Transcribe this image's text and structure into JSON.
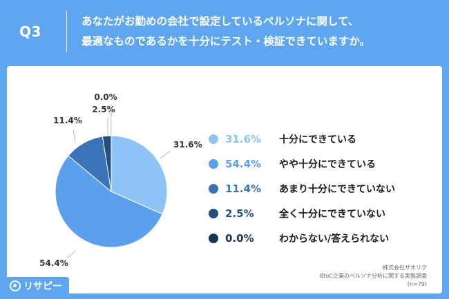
{
  "header": {
    "q_label": "Q3",
    "question_line1": "あなたがお勤めの会社で設定しているペルソナに関して、",
    "question_line2": "最適なものであるかを十分にテスト・検証できていますか。"
  },
  "chart_data": {
    "type": "pie",
    "title": "",
    "slices": [
      {
        "label": "十分にできている",
        "value": 31.6,
        "display": "31.6%",
        "color": "#8ec3f5"
      },
      {
        "label": "やや十分にできている",
        "value": 54.4,
        "display": "54.4%",
        "color": "#5aa0ec"
      },
      {
        "label": "あまり十分にできていない",
        "value": 11.4,
        "display": "11.4%",
        "color": "#3a73b8"
      },
      {
        "label": "全く十分にできていない",
        "value": 2.5,
        "display": "2.5%",
        "color": "#24507f"
      },
      {
        "label": "わからない/答えられない",
        "value": 0.0,
        "display": "0.0%",
        "color": "#17335a"
      }
    ],
    "legend_placement": "right"
  },
  "source": {
    "line1": "株式会社ザオリク",
    "line2": "BtoC企業のペルソナ分析に関する実態調査",
    "line3": "(n=79)"
  },
  "logo": {
    "text": "リサピー",
    "icon": "risapi-logo-icon"
  },
  "colors": {
    "background": "#5fa6f0",
    "card": "#ffffff"
  }
}
